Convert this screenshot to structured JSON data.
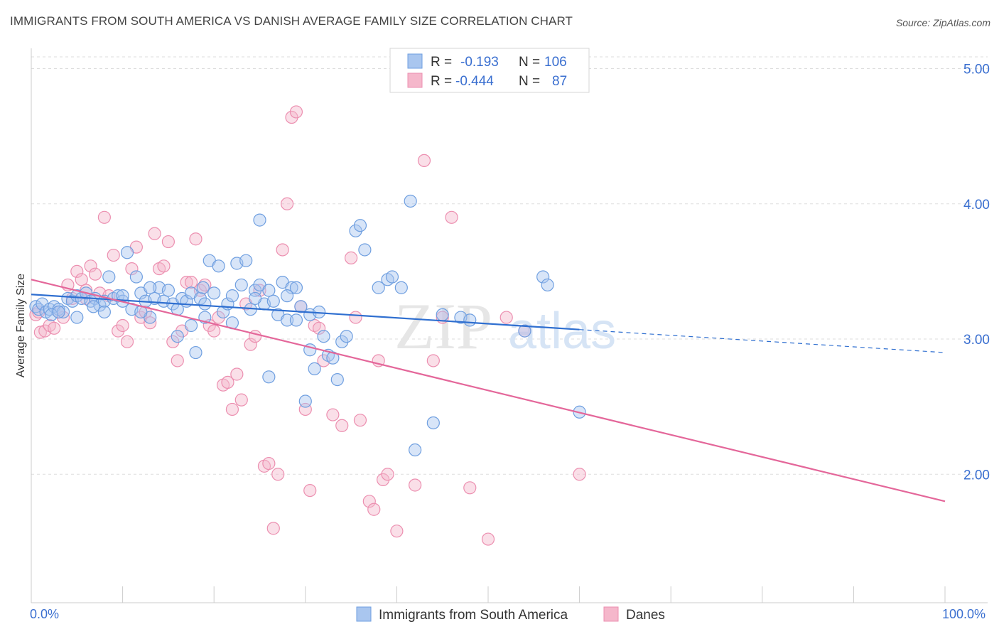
{
  "title": "IMMIGRANTS FROM SOUTH AMERICA VS DANISH AVERAGE FAMILY SIZE CORRELATION CHART",
  "source": "Source: ZipAtlas.com",
  "watermark": {
    "zip": "ZIP",
    "atlas": "atlas"
  },
  "colors": {
    "blue_fill": "#a9c6ef",
    "blue_stroke": "#6f9fe0",
    "blue_line": "#2f6fd0",
    "pink_fill": "#f5b7cb",
    "pink_stroke": "#ec8fb0",
    "pink_line": "#e4679a",
    "tick_text": "#3a6fd0",
    "grid": "#dddddd"
  },
  "legend": {
    "rows": [
      {
        "r_label": "R =",
        "r_value": "-0.193",
        "n_label": "N =",
        "n_value": "106",
        "series": "blue"
      },
      {
        "r_label": "R =",
        "r_value": "-0.444",
        "n_label": "N =",
        "n_value": "87",
        "series": "pink"
      }
    ]
  },
  "chart_data": {
    "type": "scatter",
    "ylabel": "Average Family Size",
    "xlabel": "",
    "xlim": [
      0,
      100
    ],
    "ylim": [
      1.05,
      5.15
    ],
    "y_ticks": [
      2.0,
      3.0,
      4.0,
      5.0
    ],
    "y_tick_labels": [
      "2.00",
      "3.00",
      "4.00",
      "5.00"
    ],
    "x_tick_labels": [
      "0.0%",
      "100.0%"
    ],
    "grid": "horizontal dashed",
    "legend_position": "top-center",
    "series": [
      {
        "name": "Immigrants from South America",
        "color": "#6f9fe0",
        "trend": {
          "x0": 0,
          "y0": 3.33,
          "x1": 60,
          "y1": 3.07,
          "dashed_to_x": 100,
          "dashed_to_y": 2.9
        },
        "points": [
          [
            0.5,
            3.24
          ],
          [
            0.8,
            3.22
          ],
          [
            1.2,
            3.26
          ],
          [
            1.6,
            3.2
          ],
          [
            2.0,
            3.22
          ],
          [
            2.5,
            3.24
          ],
          [
            3.0,
            3.22
          ],
          [
            3.5,
            3.2
          ],
          [
            4.0,
            3.3
          ],
          [
            4.5,
            3.28
          ],
          [
            5.0,
            3.32
          ],
          [
            5.5,
            3.3
          ],
          [
            6.0,
            3.34
          ],
          [
            6.5,
            3.28
          ],
          [
            7.0,
            3.3
          ],
          [
            7.5,
            3.25
          ],
          [
            8.0,
            3.28
          ],
          [
            8.5,
            3.46
          ],
          [
            9.0,
            3.3
          ],
          [
            9.5,
            3.32
          ],
          [
            10.0,
            3.28
          ],
          [
            10.5,
            3.64
          ],
          [
            11.0,
            3.22
          ],
          [
            11.5,
            3.46
          ],
          [
            12.0,
            3.34
          ],
          [
            12.5,
            3.28
          ],
          [
            13.0,
            3.16
          ],
          [
            13.5,
            3.3
          ],
          [
            14.0,
            3.38
          ],
          [
            14.5,
            3.28
          ],
          [
            15.0,
            3.36
          ],
          [
            15.5,
            3.26
          ],
          [
            16.0,
            3.02
          ],
          [
            16.5,
            3.3
          ],
          [
            17.0,
            3.28
          ],
          [
            17.5,
            3.34
          ],
          [
            18.0,
            2.9
          ],
          [
            18.5,
            3.3
          ],
          [
            19.0,
            3.16
          ],
          [
            19.5,
            3.58
          ],
          [
            20.0,
            3.34
          ],
          [
            20.5,
            3.54
          ],
          [
            21.0,
            3.2
          ],
          [
            21.5,
            3.26
          ],
          [
            22.0,
            3.32
          ],
          [
            22.5,
            3.56
          ],
          [
            23.0,
            3.4
          ],
          [
            23.5,
            3.58
          ],
          [
            24.0,
            3.22
          ],
          [
            24.5,
            3.36
          ],
          [
            25.0,
            3.4
          ],
          [
            25.5,
            3.26
          ],
          [
            26.0,
            3.36
          ],
          [
            26.5,
            3.28
          ],
          [
            27.0,
            3.18
          ],
          [
            27.5,
            3.42
          ],
          [
            28.0,
            3.14
          ],
          [
            28.5,
            3.38
          ],
          [
            29.0,
            3.14
          ],
          [
            29.5,
            3.24
          ],
          [
            30.0,
            2.54
          ],
          [
            30.5,
            2.92
          ],
          [
            31.0,
            2.78
          ],
          [
            32.0,
            3.02
          ],
          [
            32.5,
            2.88
          ],
          [
            33.0,
            2.86
          ],
          [
            33.5,
            2.7
          ],
          [
            34.0,
            2.98
          ],
          [
            34.5,
            3.02
          ],
          [
            35.5,
            3.8
          ],
          [
            36.0,
            3.84
          ],
          [
            36.5,
            3.66
          ],
          [
            17.5,
            3.1
          ],
          [
            8.0,
            3.2
          ],
          [
            5.0,
            3.16
          ],
          [
            2.2,
            3.18
          ],
          [
            25.0,
            3.88
          ],
          [
            26.0,
            2.72
          ],
          [
            28.0,
            3.32
          ],
          [
            30.5,
            3.18
          ],
          [
            39.0,
            3.44
          ],
          [
            39.5,
            3.46
          ],
          [
            40.5,
            3.38
          ],
          [
            41.5,
            4.02
          ],
          [
            42.0,
            2.18
          ],
          [
            38.0,
            3.38
          ],
          [
            13.0,
            3.38
          ],
          [
            22.0,
            3.12
          ],
          [
            19.0,
            3.26
          ],
          [
            16.0,
            3.22
          ],
          [
            44.0,
            2.38
          ],
          [
            45.0,
            3.18
          ],
          [
            47.0,
            3.16
          ],
          [
            48.0,
            3.14
          ],
          [
            54.0,
            3.06
          ],
          [
            60.0,
            2.46
          ],
          [
            56.0,
            3.46
          ],
          [
            56.5,
            3.4
          ],
          [
            3.0,
            3.2
          ],
          [
            6.8,
            3.24
          ],
          [
            12.0,
            3.2
          ],
          [
            10.0,
            3.32
          ],
          [
            24.5,
            3.3
          ],
          [
            31.5,
            3.2
          ],
          [
            18.8,
            3.38
          ],
          [
            29.0,
            3.38
          ]
        ]
      },
      {
        "name": "Danes",
        "color": "#ec8fb0",
        "trend": {
          "x0": 0,
          "y0": 3.44,
          "x1": 100,
          "y1": 1.8
        },
        "points": [
          [
            0.5,
            3.18
          ],
          [
            1.0,
            3.05
          ],
          [
            1.5,
            3.06
          ],
          [
            2.0,
            3.1
          ],
          [
            2.5,
            3.08
          ],
          [
            3.0,
            3.2
          ],
          [
            3.5,
            3.16
          ],
          [
            4.0,
            3.4
          ],
          [
            4.5,
            3.3
          ],
          [
            5.0,
            3.5
          ],
          [
            5.5,
            3.44
          ],
          [
            6.0,
            3.3
          ],
          [
            6.5,
            3.54
          ],
          [
            7.0,
            3.48
          ],
          [
            7.5,
            3.34
          ],
          [
            8.0,
            3.9
          ],
          [
            8.5,
            3.32
          ],
          [
            9.0,
            3.62
          ],
          [
            9.5,
            3.06
          ],
          [
            10.0,
            3.1
          ],
          [
            10.5,
            2.98
          ],
          [
            11.0,
            3.52
          ],
          [
            11.5,
            3.68
          ],
          [
            12.0,
            3.16
          ],
          [
            12.5,
            3.2
          ],
          [
            13.0,
            3.12
          ],
          [
            13.5,
            3.78
          ],
          [
            14.0,
            3.52
          ],
          [
            14.5,
            3.54
          ],
          [
            15.0,
            3.72
          ],
          [
            15.5,
            2.98
          ],
          [
            16.0,
            2.84
          ],
          [
            16.5,
            3.06
          ],
          [
            17.0,
            3.42
          ],
          [
            17.5,
            3.42
          ],
          [
            18.0,
            3.74
          ],
          [
            18.5,
            3.36
          ],
          [
            19.0,
            3.4
          ],
          [
            19.5,
            3.1
          ],
          [
            20.0,
            3.06
          ],
          [
            20.5,
            3.16
          ],
          [
            21.0,
            2.66
          ],
          [
            21.5,
            2.68
          ],
          [
            22.0,
            2.48
          ],
          [
            22.5,
            2.74
          ],
          [
            23.0,
            2.55
          ],
          [
            23.5,
            3.26
          ],
          [
            24.0,
            2.96
          ],
          [
            24.5,
            3.02
          ],
          [
            25.0,
            3.36
          ],
          [
            25.5,
            2.06
          ],
          [
            26.0,
            2.08
          ],
          [
            26.5,
            1.6
          ],
          [
            27.0,
            2.0
          ],
          [
            27.5,
            3.66
          ],
          [
            28.0,
            4.0
          ],
          [
            28.5,
            4.64
          ],
          [
            29.0,
            4.68
          ],
          [
            29.5,
            3.24
          ],
          [
            30.0,
            2.48
          ],
          [
            30.5,
            1.88
          ],
          [
            31.0,
            3.1
          ],
          [
            31.5,
            3.08
          ],
          [
            32.0,
            2.84
          ],
          [
            33.0,
            2.44
          ],
          [
            34.0,
            2.36
          ],
          [
            35.0,
            3.6
          ],
          [
            35.5,
            3.16
          ],
          [
            36.0,
            2.4
          ],
          [
            37.0,
            1.8
          ],
          [
            37.5,
            1.74
          ],
          [
            38.0,
            2.84
          ],
          [
            38.5,
            1.96
          ],
          [
            39.0,
            2.0
          ],
          [
            40.0,
            1.58
          ],
          [
            42.0,
            1.92
          ],
          [
            43.0,
            4.32
          ],
          [
            44.0,
            2.84
          ],
          [
            45.0,
            3.16
          ],
          [
            46.0,
            3.9
          ],
          [
            48.0,
            1.9
          ],
          [
            50.0,
            1.52
          ],
          [
            52.0,
            3.16
          ],
          [
            54.0,
            3.06
          ],
          [
            60.0,
            2.0
          ],
          [
            0.8,
            3.2
          ],
          [
            6.0,
            3.36
          ]
        ]
      }
    ]
  },
  "bottom_legend": [
    {
      "label": "Immigrants from South America",
      "series": "blue"
    },
    {
      "label": "Danes",
      "series": "pink"
    }
  ]
}
